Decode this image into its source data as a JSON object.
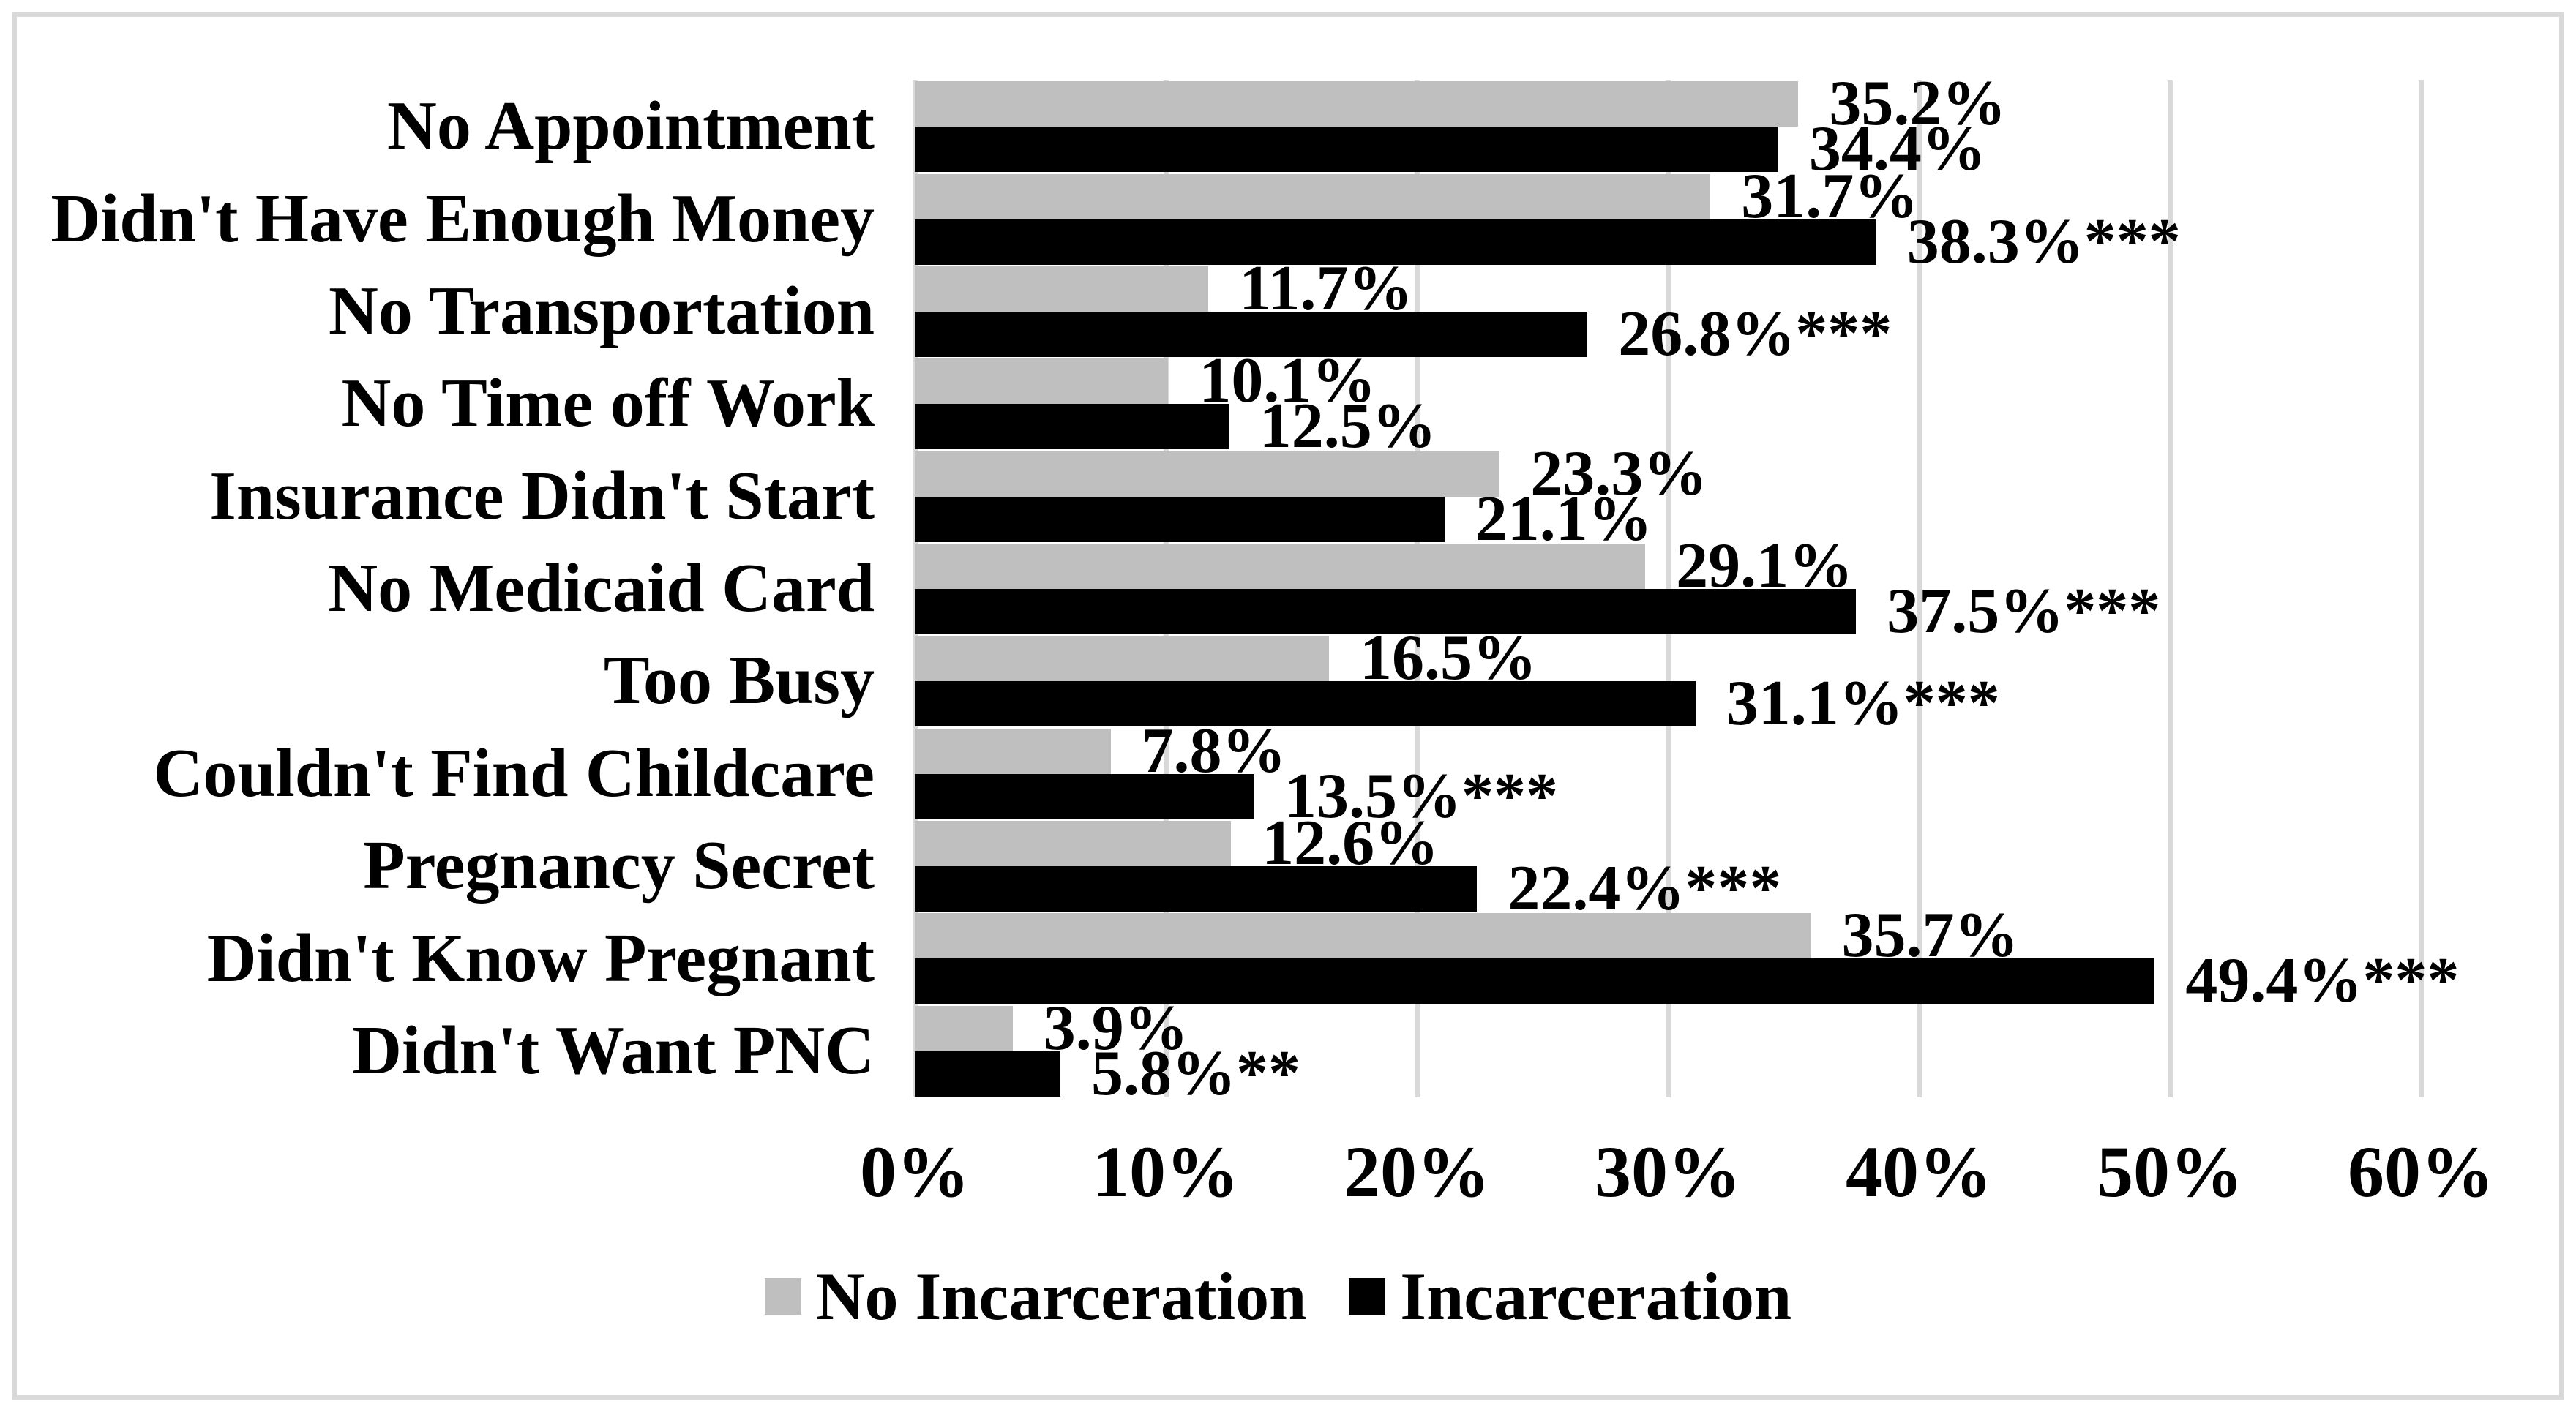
{
  "figure": {
    "background_color": "#ffffff",
    "border_color": "#d9d9d9"
  },
  "chart_data": {
    "type": "bar",
    "orientation": "horizontal",
    "title": "",
    "xlabel": "",
    "ylabel": "",
    "grid": "vertical-only",
    "gridline_color": "#d9d9d9",
    "categories": [
      "No Appointment",
      "Didn't Have Enough Money",
      "No Transportation",
      "No Time off Work",
      "Insurance Didn't Start",
      "No Medicaid Card",
      "Too Busy",
      "Couldn't Find Childcare",
      "Pregnancy Secret",
      "Didn't Know Pregnant",
      "Didn't Want PNC"
    ],
    "series": [
      {
        "name": "No Incarceration",
        "color": "#bfbfbf",
        "values": [
          35.2,
          31.7,
          11.7,
          10.1,
          23.3,
          29.1,
          16.5,
          7.8,
          12.6,
          35.7,
          3.9
        ],
        "data_labels": [
          "35.2%",
          "31.7%",
          "11.7%",
          "10.1%",
          "23.3%",
          "29.1%",
          "16.5%",
          "7.8%",
          "12.6%",
          "35.7%",
          "3.9%"
        ]
      },
      {
        "name": "Incarceration",
        "color": "#000000",
        "values": [
          34.4,
          38.3,
          26.8,
          12.5,
          21.1,
          37.5,
          31.1,
          13.5,
          22.4,
          49.4,
          5.8
        ],
        "data_labels": [
          "34.4%",
          "38.3%***",
          "26.8%***",
          "12.5%",
          "21.1%",
          "37.5%***",
          "31.1%***",
          "13.5%***",
          "22.4%***",
          "49.4%***",
          "5.8%**"
        ]
      }
    ],
    "x_axis": {
      "min": 0,
      "max": 60,
      "tick_values": [
        0,
        10,
        20,
        30,
        40,
        50,
        60
      ],
      "tick_labels": [
        "0%",
        "10%",
        "20%",
        "30%",
        "40%",
        "50%",
        "60%"
      ]
    },
    "legend": {
      "position": "bottom",
      "entries": [
        {
          "label": "No Incarceration",
          "color": "#bfbfbf"
        },
        {
          "label": "Incarceration",
          "color": "#000000"
        }
      ]
    }
  }
}
